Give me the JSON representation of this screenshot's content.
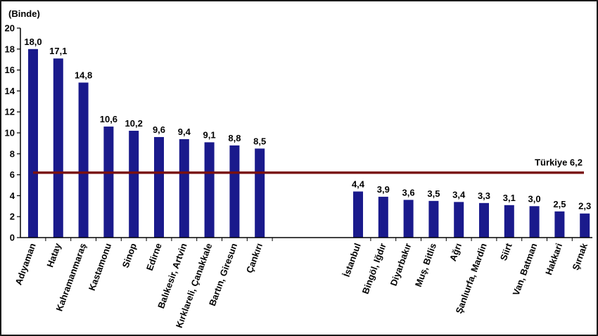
{
  "chart_data": {
    "type": "bar",
    "unit_label": "(Binde)",
    "ylim": [
      0,
      20
    ],
    "y_ticks": [
      0,
      2,
      4,
      6,
      8,
      10,
      12,
      14,
      16,
      18,
      20
    ],
    "grid": false,
    "series": [
      {
        "values": [
          18.0,
          17.1,
          14.8,
          10.6,
          10.2,
          9.6,
          9.4,
          9.1,
          8.8,
          8.5,
          4.4,
          3.9,
          3.6,
          3.5,
          3.4,
          3.3,
          3.1,
          3.0,
          2.5,
          2.3
        ],
        "labels": [
          "18,0",
          "17,1",
          "14,8",
          "10,6",
          "10,2",
          "9,6",
          "9,4",
          "9,1",
          "8,8",
          "8,5",
          "4,4",
          "3,9",
          "3,6",
          "3,5",
          "3,4",
          "3,3",
          "3,1",
          "3,0",
          "2,5",
          "2,3"
        ],
        "color": "#1a1a8c"
      }
    ],
    "categories": [
      "Adıyaman",
      "Hatay",
      "Kahramanmaraş",
      "Kastamonu",
      "Sinop",
      "Edirne",
      "Balıkesir, Artvin",
      "Kırklareli, Çanakkale",
      "Bartın, Giresun",
      "Çankırı",
      "İstanbul",
      "Bingöl, Iğdır",
      "Diyarbakır",
      "Muş, Bitlis",
      "Ağrı",
      "Şanlıurfa, Mardin",
      "Siirt",
      "Van, Batman",
      "Hakkari",
      "Şırnak"
    ],
    "reference_line": {
      "value": 6.2,
      "label": "Türkiye  6,2",
      "color": "#7a1010"
    }
  }
}
